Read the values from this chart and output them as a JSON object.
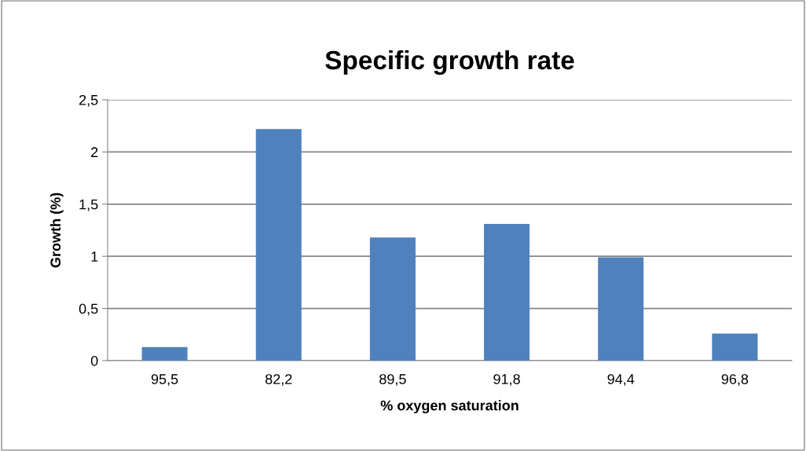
{
  "chart_data": {
    "type": "bar",
    "title": "Specific growth rate",
    "xlabel": "% oxygen saturation",
    "ylabel": "Growth (%)",
    "categories": [
      "95,5",
      "82,2",
      "89,5",
      "91,8",
      "94,4",
      "96,8"
    ],
    "values": [
      0.13,
      2.22,
      1.18,
      1.31,
      0.99,
      0.26
    ],
    "color": "#4f81bd",
    "ylim": [
      0,
      2.5
    ],
    "yticks": [
      {
        "value": 0,
        "label": "0"
      },
      {
        "value": 0.5,
        "label": "0,5"
      },
      {
        "value": 1,
        "label": "1"
      },
      {
        "value": 1.5,
        "label": "1,5"
      },
      {
        "value": 2,
        "label": "2"
      },
      {
        "value": 2.5,
        "label": "2,5"
      }
    ],
    "grid": "y",
    "legend": false
  }
}
